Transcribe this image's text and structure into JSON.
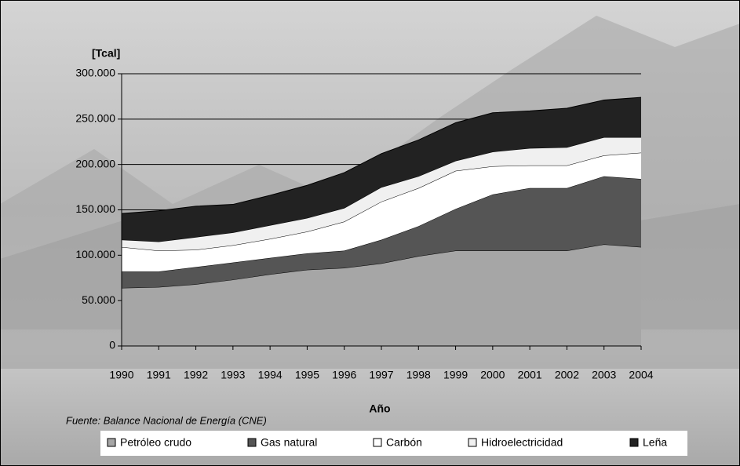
{
  "chart_data": {
    "type": "stacked_area",
    "y_label": "[Tcal]",
    "x_label": "Año",
    "source": "Fuente: Balance Nacional de Energía (CNE)",
    "x": [
      1990,
      1991,
      1992,
      1993,
      1994,
      1995,
      1996,
      1997,
      1998,
      1999,
      2000,
      2001,
      2002,
      2003,
      2004
    ],
    "xlim": [
      1990,
      2004
    ],
    "xticks": [
      1990,
      1991,
      1992,
      1993,
      1994,
      1995,
      1996,
      1997,
      1998,
      1999,
      2000,
      2001,
      2002,
      2003,
      2004
    ],
    "ylim": [
      0,
      300000
    ],
    "yticks": [
      0,
      {
        "value": 50000,
        "label": "50.000"
      },
      {
        "value": 100000,
        "label": "100.000"
      },
      {
        "value": 150000,
        "label": "150.000"
      },
      {
        "value": 200000,
        "label": "200.000"
      },
      {
        "value": 250000,
        "label": "250.000"
      },
      {
        "value": 300000,
        "label": "300.000"
      }
    ],
    "grid": true,
    "legend": "bottom",
    "series": [
      {
        "name": "Petróleo crudo",
        "color": "#a6a6a6",
        "values": [
          64000,
          65000,
          68000,
          73000,
          79000,
          84000,
          86000,
          91000,
          99000,
          105000,
          105000,
          105000,
          105000,
          112000,
          109000
        ]
      },
      {
        "name": "Gas natural",
        "color": "#555555",
        "values": [
          18000,
          17000,
          19000,
          19000,
          18000,
          18000,
          19000,
          26000,
          33000,
          46000,
          62000,
          69000,
          69000,
          75000,
          75000
        ]
      },
      {
        "name": "Carbón",
        "color": "#ffffff",
        "values": [
          27000,
          23000,
          19000,
          19000,
          21000,
          24000,
          32000,
          42000,
          42000,
          42000,
          31000,
          25000,
          25000,
          23000,
          29000
        ]
      },
      {
        "name": "Hidroelectricidad",
        "color": "#f0f0f0",
        "values": [
          8000,
          10000,
          14000,
          14000,
          15000,
          15000,
          15000,
          16000,
          13000,
          11000,
          16000,
          19000,
          20000,
          20000,
          17000
        ]
      },
      {
        "name": "Leña",
        "color": "#222222",
        "values": [
          29000,
          34000,
          34000,
          31000,
          33000,
          36000,
          39000,
          37000,
          40000,
          42000,
          43000,
          41000,
          43000,
          41000,
          44000
        ]
      }
    ]
  }
}
